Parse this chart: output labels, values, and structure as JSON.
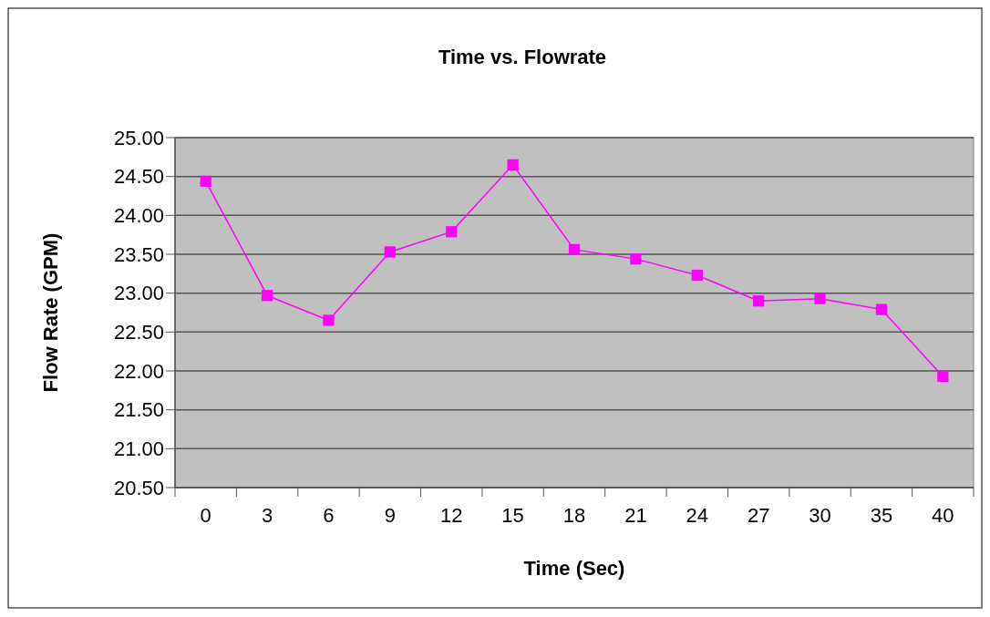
{
  "chart_data": {
    "type": "line",
    "title": "Time vs. Flowrate",
    "xlabel": "Time (Sec)",
    "ylabel": "Flow Rate (GPM)",
    "categories": [
      "0",
      "3",
      "6",
      "9",
      "12",
      "15",
      "18",
      "21",
      "24",
      "27",
      "30",
      "35",
      "40"
    ],
    "series": [
      {
        "color": "#ff00ff",
        "values": [
          24.44,
          22.97,
          22.65,
          23.53,
          23.79,
          24.65,
          23.56,
          23.44,
          23.23,
          22.9,
          22.93,
          22.79,
          21.93
        ]
      }
    ],
    "ylim": [
      20.5,
      25
    ],
    "yticks": [
      {
        "value": 20.5,
        "label": "20.50"
      },
      {
        "value": 21,
        "label": "21.00"
      },
      {
        "value": 21.5,
        "label": "21.50"
      },
      {
        "value": 22,
        "label": "22.00"
      },
      {
        "value": 22.5,
        "label": "22.50"
      },
      {
        "value": 23,
        "label": "23.00"
      },
      {
        "value": 23.5,
        "label": "23.50"
      },
      {
        "value": 24,
        "label": "24.00"
      },
      {
        "value": 24.5,
        "label": "24.50"
      },
      {
        "value": 25,
        "label": "25.00"
      }
    ],
    "grid": "y",
    "marker": "square",
    "line_style": "solid"
  }
}
